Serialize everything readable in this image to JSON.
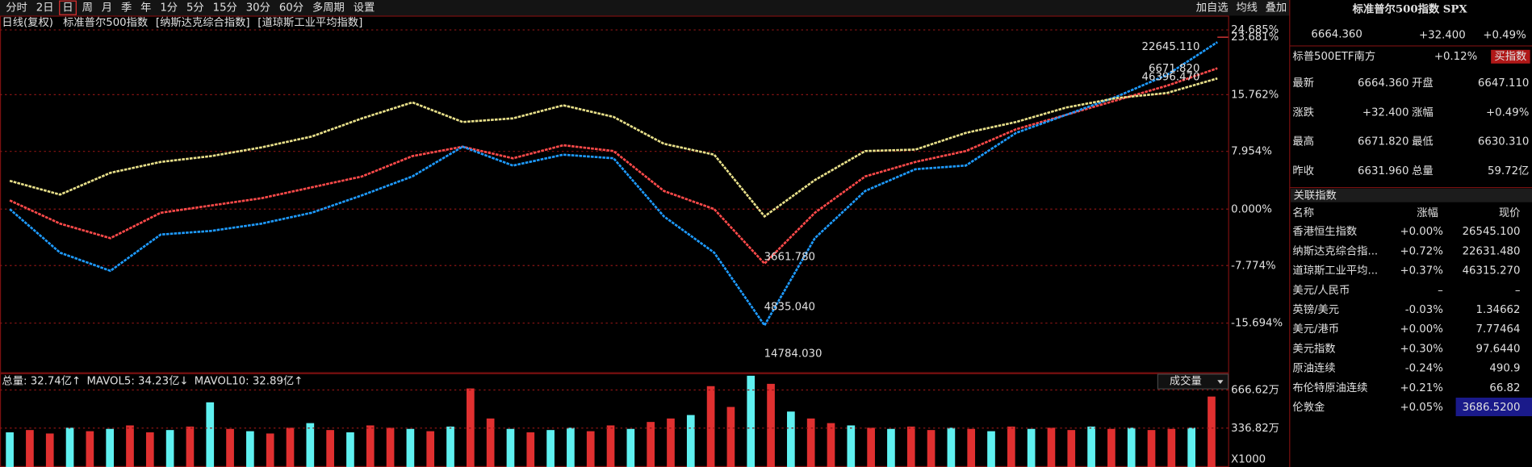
{
  "toolbar": {
    "items": [
      "分时",
      "2日",
      "日",
      "周",
      "月",
      "季",
      "年",
      "1分",
      "5分",
      "15分",
      "30分",
      "60分",
      "多周期",
      "设置"
    ],
    "selected": 2,
    "right": [
      "加自选",
      "均线",
      "叠加"
    ]
  },
  "chart_data": [
    {
      "type": "line",
      "period_label": "日线(复权)",
      "series": [
        {
          "name": "标准普尔500指数",
          "color": "#ff4a4a",
          "values": [
            1.2,
            -2.0,
            -4.0,
            -0.5,
            0.5,
            1.5,
            3.0,
            4.5,
            7.3,
            8.6,
            7.0,
            8.8,
            8.0,
            2.5,
            0.0,
            -7.5,
            -0.5,
            4.5,
            6.5,
            8.0,
            11.0,
            13.0,
            15.0,
            17.0,
            19.4
          ]
        },
        {
          "name": "[纳斯达克综合指数]",
          "color": "#1e9bff",
          "values": [
            0.0,
            -6.0,
            -8.5,
            -3.5,
            -3.0,
            -2.0,
            -0.5,
            1.9,
            4.5,
            8.6,
            6.0,
            7.5,
            7.0,
            -1.0,
            -6.0,
            -16.0,
            -4.0,
            2.5,
            5.5,
            6.0,
            10.5,
            13.0,
            15.5,
            18.5,
            23.0
          ]
        },
        {
          "name": "[道琼斯工业平均指数]",
          "color": "#e8e08a",
          "values": [
            3.9,
            2.0,
            5.0,
            6.5,
            7.3,
            8.5,
            10.0,
            12.5,
            14.7,
            12.0,
            12.5,
            14.3,
            12.7,
            9.0,
            7.5,
            -1.0,
            4.0,
            8.0,
            8.2,
            10.5,
            12.0,
            14.0,
            15.3,
            16.0,
            18.0
          ]
        }
      ],
      "ylim": [
        -22.6,
        26.65
      ],
      "yticks": [
        {
          "value": 24.685,
          "label": "24.685%"
        },
        {
          "value": 15.762,
          "label": "15.762%"
        },
        {
          "value": 7.954,
          "label": "7.954%"
        },
        {
          "value": 0,
          "label": "0.000%"
        },
        {
          "value": -7.774,
          "label": "-7.774%"
        },
        {
          "value": -15.694,
          "label": "-15.694%"
        }
      ],
      "current": {
        "value": 23.681,
        "label": "23.681%"
      },
      "grid": true,
      "annotations": [
        "22645.110",
        "6671.820",
        "46396.470",
        "3661.780",
        "4835.040",
        "14784.030"
      ]
    },
    {
      "type": "bar",
      "header": [
        "总量: 32.74亿↑",
        "MAVOL5: 34.23亿↓",
        "MAVOL10: 32.89亿↑"
      ],
      "selector": "成交量",
      "values": [
        300,
        320,
        290,
        340,
        310,
        330,
        360,
        300,
        320,
        350,
        560,
        330,
        310,
        290,
        340,
        380,
        320,
        300,
        360,
        340,
        330,
        310,
        350,
        680,
        420,
        330,
        300,
        320,
        340,
        310,
        360,
        330,
        390,
        420,
        450,
        700,
        520,
        790,
        720,
        480,
        420,
        380,
        360,
        340,
        330,
        350,
        320,
        340,
        330,
        310,
        350,
        330,
        340,
        320,
        350,
        330,
        340,
        320,
        330,
        340,
        610
      ],
      "up": [
        false,
        true,
        true,
        false,
        true,
        false,
        true,
        true,
        false,
        true,
        false,
        true,
        false,
        true,
        true,
        false,
        true,
        false,
        true,
        true,
        false,
        true,
        false,
        true,
        true,
        false,
        true,
        false,
        false,
        true,
        true,
        false,
        true,
        true,
        false,
        true,
        true,
        false,
        true,
        false,
        true,
        true,
        false,
        true,
        false,
        true,
        true,
        false,
        true,
        false,
        true,
        false,
        true,
        true,
        false,
        true,
        false,
        true,
        true,
        false,
        true
      ],
      "colors": {
        "up": "#e03030",
        "down": "#5ff0f0"
      },
      "ylim": [
        0,
        812
      ],
      "yticks": [
        {
          "value": 336.82,
          "label": "336.82万"
        },
        {
          "value": 666.62,
          "label": "666.62万"
        }
      ],
      "unit": "X1000"
    }
  ],
  "panel": {
    "title": "标准普尔500指数 SPX",
    "price": "6664.360",
    "change": "+32.400",
    "change_pct": "+0.49%",
    "etf": {
      "name": "标普500ETF南方",
      "change": "+0.12%",
      "button": "买指数"
    },
    "quote": [
      {
        "label": "最新",
        "value": "6664.360",
        "color": "#ff3b3b"
      },
      {
        "label": "开盘",
        "value": "6647.110",
        "color": "#ff3b3b"
      },
      {
        "label": "涨跌",
        "value": "+32.400",
        "color": "#ff3b3b"
      },
      {
        "label": "涨幅",
        "value": "+0.49%",
        "color": "#ff3b3b"
      },
      {
        "label": "最高",
        "value": "6671.820",
        "color": "#ff3b3b"
      },
      {
        "label": "最低",
        "value": "6630.310",
        "color": "#00d000"
      },
      {
        "label": "昨收",
        "value": "6631.960",
        "color": "#e8e8e8"
      },
      {
        "label": "总量",
        "value": "59.72亿",
        "color": "#5ff0f0"
      }
    ],
    "related": {
      "title": "关联指数",
      "columns": [
        "名称",
        "涨幅",
        "现价"
      ],
      "rows": [
        {
          "name": "香港恒生指数",
          "change": "+0.00%",
          "price": "26545.100",
          "color": "#ff3b3b"
        },
        {
          "name": "纳斯达克综合指...",
          "change": "+0.72%",
          "price": "22631.480",
          "color": "#ff3b3b"
        },
        {
          "name": "道琼斯工业平均...",
          "change": "+0.37%",
          "price": "46315.270",
          "color": "#ff3b3b"
        },
        {
          "name": "美元/人民币",
          "change": "–",
          "price": "–",
          "color": "#e8e8e8"
        },
        {
          "name": "英镑/美元",
          "change": "-0.03%",
          "price": "1.34662",
          "color": "#00d000"
        },
        {
          "name": "美元/港币",
          "change": "+0.00%",
          "price": "7.77464",
          "color": "#ff3b3b"
        },
        {
          "name": "美元指数",
          "change": "+0.30%",
          "price": "97.6440",
          "color": "#ff3b3b"
        },
        {
          "name": "原油连续",
          "change": "-0.24%",
          "price": "490.9",
          "color": "#00d000"
        },
        {
          "name": "布伦特原油连续",
          "change": "+0.21%",
          "price": "66.82",
          "color": "#ff3b3b"
        },
        {
          "name": "伦敦金",
          "change": "+0.05%",
          "price": "3686.5200",
          "color": "#ff3b3b"
        }
      ]
    }
  }
}
